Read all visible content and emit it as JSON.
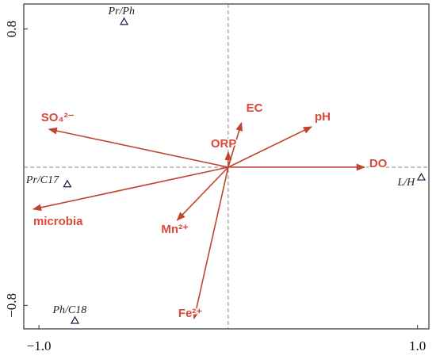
{
  "chart_data": {
    "type": "biplot",
    "xlim": [
      -1.08,
      1.06
    ],
    "ylim": [
      -0.936,
      0.945
    ],
    "xticks": [
      {
        "value": -1.0,
        "label": "−1.0"
      },
      {
        "value": 1.0,
        "label": "1.0"
      }
    ],
    "yticks": [
      {
        "value": -0.8,
        "label": "−0.8"
      },
      {
        "value": 0.8,
        "label": "0.8"
      }
    ],
    "arrow_color": "#c0442e",
    "point_color": "#1a1a40",
    "arrows": [
      {
        "name": "SO₄²⁻",
        "x": -0.947,
        "y": 0.22
      },
      {
        "name": "EC",
        "x": 0.07,
        "y": 0.257
      },
      {
        "name": "pH",
        "x": 0.44,
        "y": 0.234
      },
      {
        "name": "ORP",
        "x": 0.0,
        "y": 0.087
      },
      {
        "name": "DO",
        "x": 0.72,
        "y": 0.0
      },
      {
        "name": "microbia",
        "x": -1.03,
        "y": -0.243
      },
      {
        "name": "Mn²⁺",
        "x": -0.27,
        "y": -0.307
      },
      {
        "name": "Fe²⁺",
        "x": -0.18,
        "y": -0.876
      }
    ],
    "points": [
      {
        "name": "Pr/Ph",
        "x": -0.55,
        "y": 0.84
      },
      {
        "name": "Pr/C17",
        "x": -0.85,
        "y": -0.1
      },
      {
        "name": "L/H",
        "x": 1.02,
        "y": -0.06
      },
      {
        "name": "Ph/C18",
        "x": -0.81,
        "y": -0.89
      }
    ]
  }
}
